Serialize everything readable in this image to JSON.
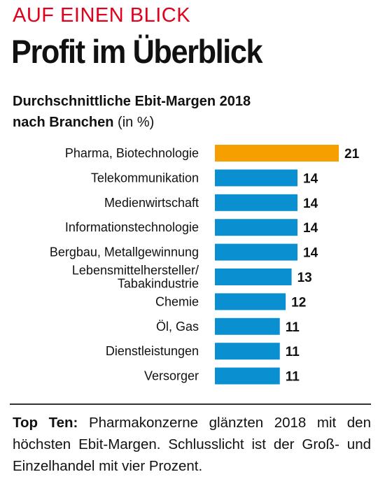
{
  "header": {
    "kicker": "AUF EINEN BLICK",
    "headline": "Profit im Überblick",
    "subtitle_line1": "Durchschnittliche Ebit-Margen 2018",
    "subtitle_line2": "nach Branchen",
    "subtitle_unit": "(in %)"
  },
  "colors": {
    "kicker": "#e2001a",
    "highlight_bar": "#f5a000",
    "bar": "#0a8fd0",
    "text": "#111111"
  },
  "chart_data": {
    "type": "bar",
    "orientation": "horizontal",
    "title": "Durchschnittliche Ebit-Margen 2018 nach Branchen",
    "unit": "%",
    "xlim": [
      0,
      21
    ],
    "categories": [
      [
        "Pharma, Biotechnologie"
      ],
      [
        "Telekommunikation"
      ],
      [
        "Medienwirtschaft"
      ],
      [
        "Informationstechnologie"
      ],
      [
        "Bergbau, Metallgewinnung"
      ],
      [
        "Lebensmittelhersteller/",
        "Tabakindustrie"
      ],
      [
        "Chemie"
      ],
      [
        "Öl, Gas"
      ],
      [
        "Dienstleistungen"
      ],
      [
        "Versorger"
      ]
    ],
    "values": [
      21,
      14,
      14,
      14,
      14,
      13,
      12,
      11,
      11,
      11
    ],
    "highlight_index": 0
  },
  "footnote": {
    "lead": "Top Ten:",
    "text": "Pharmakonzerne glänzten 2018 mit den höchsten Ebit-Margen. Schlusslicht ist der Groß- und Einzelhandel mit vier Prozent."
  }
}
